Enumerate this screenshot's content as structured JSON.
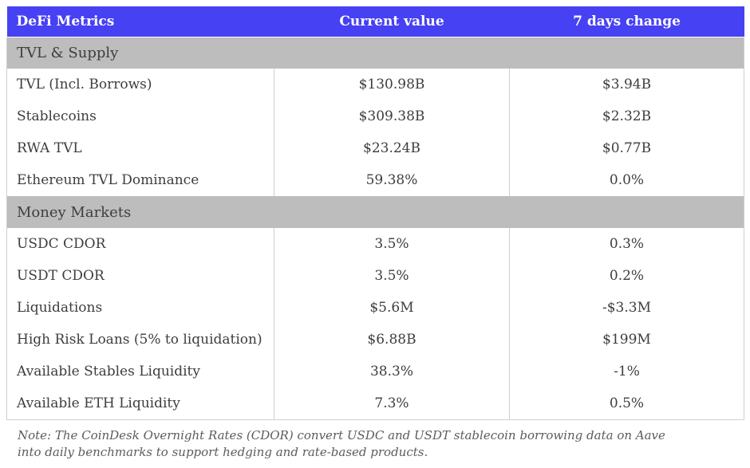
{
  "colors": {
    "header_bg": "#4741f4",
    "header_text": "#ffffff",
    "section_bg": "#bdbdbd",
    "body_text": "#3d3d3d",
    "border": "#cfcfcf",
    "note_text": "#5c5c5c"
  },
  "chart_data": {
    "type": "table",
    "title": "DeFi Metrics",
    "columns": [
      "DeFi Metrics",
      "Current value",
      "7 days change"
    ],
    "sections": [
      {
        "title": "TVL & Supply",
        "rows": [
          {
            "metric": "TVL (Incl. Borrows)",
            "current": "$130.98B",
            "change": "$3.94B"
          },
          {
            "metric": "Stablecoins",
            "current": "$309.38B",
            "change": "$2.32B"
          },
          {
            "metric": "RWA TVL",
            "current": "$23.24B",
            "change": "$0.77B"
          },
          {
            "metric": "Ethereum TVL Dominance",
            "current": "59.38%",
            "change": "0.0%"
          }
        ]
      },
      {
        "title": "Money Markets",
        "rows": [
          {
            "metric": "USDC CDOR",
            "current": "3.5%",
            "change": "0.3%"
          },
          {
            "metric": "USDT CDOR",
            "current": "3.5%",
            "change": "0.2%"
          },
          {
            "metric": "Liquidations",
            "current": "$5.6M",
            "change": "-$3.3M"
          },
          {
            "metric": "High Risk Loans (5% to liquidation)",
            "current": "$6.88B",
            "change": "$199M"
          },
          {
            "metric": "Available Stables Liquidity",
            "current": "38.3%",
            "change": "-1%"
          },
          {
            "metric": "Available ETH Liquidity",
            "current": "7.3%",
            "change": "0.5%"
          }
        ]
      }
    ],
    "note": "Note: The CoinDesk Overnight Rates (CDOR) convert USDC and USDT stablecoin borrowing data on Aave into daily benchmarks to support hedging and rate-based products."
  }
}
